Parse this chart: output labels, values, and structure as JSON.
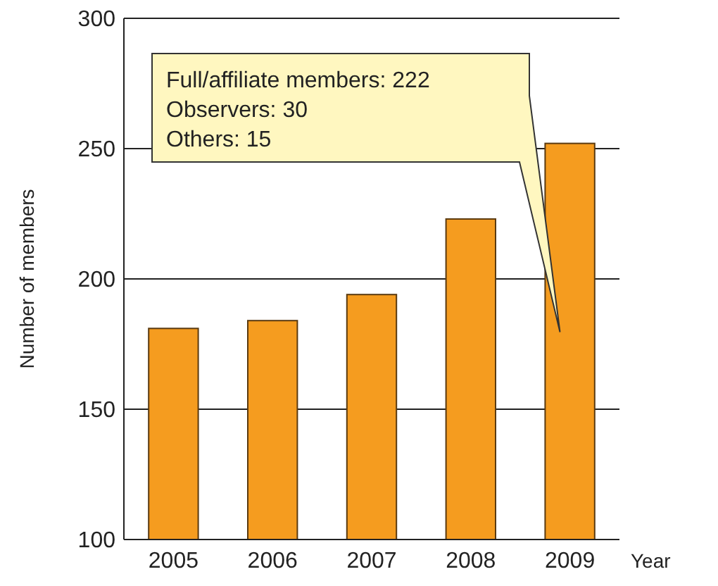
{
  "chart_data": {
    "type": "bar",
    "xlabel": "Year",
    "ylabel": "Number of members",
    "categories": [
      "2005",
      "2006",
      "2007",
      "2008",
      "2009"
    ],
    "values": [
      181,
      184,
      194,
      223,
      252
    ],
    "color": "#f59c1f",
    "ylim": [
      100,
      300
    ],
    "yticks": [
      100,
      150,
      200,
      250,
      300
    ],
    "grid": "y",
    "annotations": [
      "Full/affiliate members: 222",
      "Observers: 30",
      "Others: 15"
    ]
  }
}
